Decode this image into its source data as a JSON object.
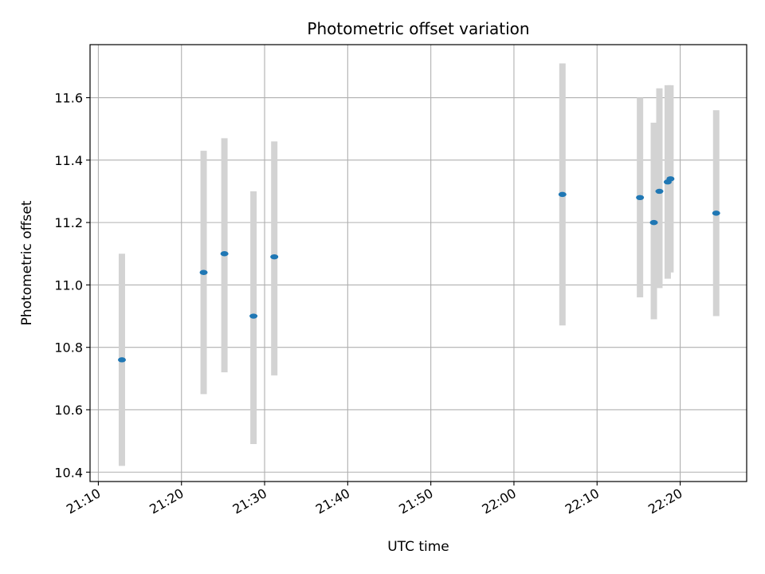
{
  "chart_data": {
    "type": "scatter",
    "title": "Photometric offset variation",
    "xlabel": "UTC time",
    "ylabel": "Photometric offset",
    "x_ticks": [
      "21:10",
      "21:20",
      "21:30",
      "21:40",
      "21:50",
      "22:00",
      "22:10",
      "22:20"
    ],
    "y_ticks": [
      "10.4",
      "10.6",
      "10.8",
      "11.0",
      "11.2",
      "11.4",
      "11.6"
    ],
    "xlim": [
      "21:09",
      "22:28"
    ],
    "ylim": [
      10.37,
      11.77
    ],
    "grid": true,
    "marker_color": "#1f77b4",
    "errorbar_color": "#d3d3d3",
    "points": [
      {
        "x": "21:12:50",
        "y": 10.76,
        "low": 10.42,
        "high": 11.1
      },
      {
        "x": "21:22:40",
        "y": 11.04,
        "low": 10.65,
        "high": 11.43
      },
      {
        "x": "21:25:10",
        "y": 11.1,
        "low": 10.72,
        "high": 11.47
      },
      {
        "x": "21:28:40",
        "y": 10.9,
        "low": 10.49,
        "high": 11.3
      },
      {
        "x": "21:31:10",
        "y": 11.09,
        "low": 10.71,
        "high": 11.46
      },
      {
        "x": "22:05:50",
        "y": 11.29,
        "low": 10.87,
        "high": 11.71
      },
      {
        "x": "22:15:10",
        "y": 11.28,
        "low": 10.96,
        "high": 11.6
      },
      {
        "x": "22:16:50",
        "y": 11.2,
        "low": 10.89,
        "high": 11.52
      },
      {
        "x": "22:17:30",
        "y": 11.3,
        "low": 10.99,
        "high": 11.63
      },
      {
        "x": "22:18:30",
        "y": 11.33,
        "low": 11.02,
        "high": 11.64
      },
      {
        "x": "22:18:50",
        "y": 11.34,
        "low": 11.04,
        "high": 11.64
      },
      {
        "x": "22:24:20",
        "y": 11.23,
        "low": 10.9,
        "high": 11.56
      }
    ]
  }
}
